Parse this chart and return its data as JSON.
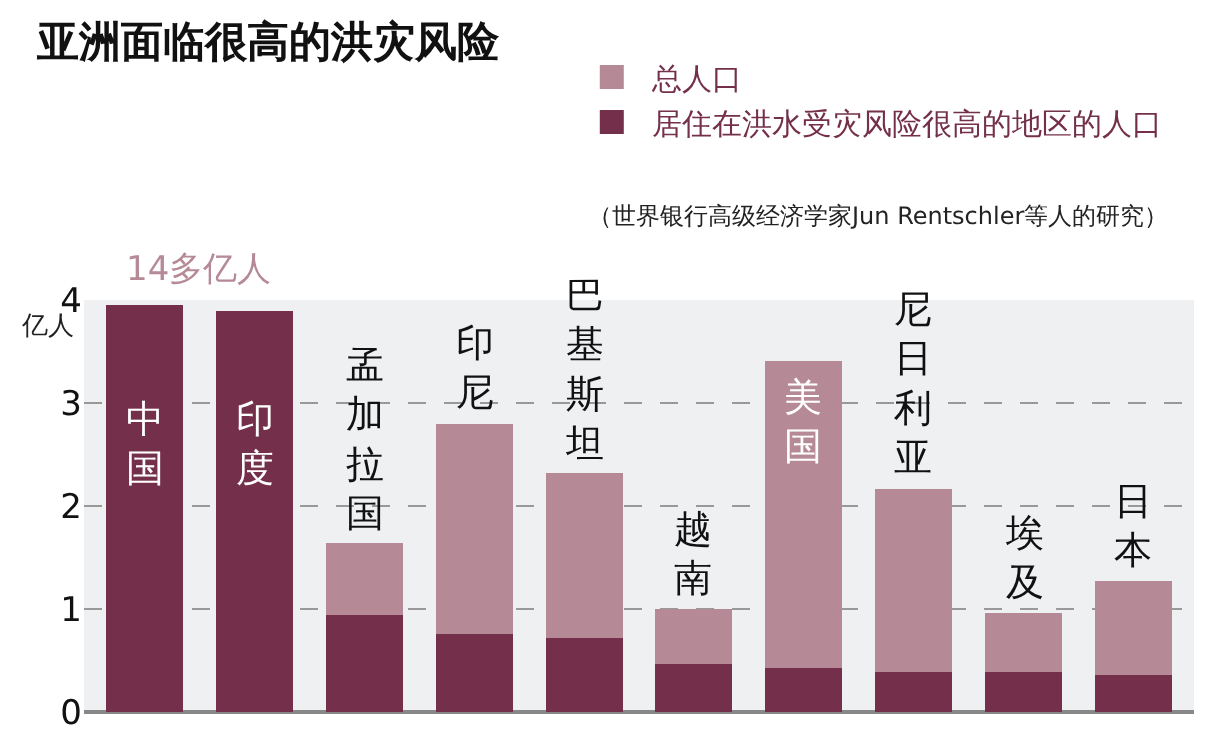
{
  "chart_data": {
    "type": "bar",
    "title": "亚洲面临很高的洪灾风险",
    "subtitle": "（世界银行高级经济学家Jun Rentschler等人的研究）",
    "ylabel": "亿人",
    "categories": [
      "中国",
      "印度",
      "孟加拉国",
      "印尼",
      "巴基斯坦",
      "越南",
      "美国",
      "尼日利亚",
      "埃及",
      "日本"
    ],
    "stacked": true,
    "series": [
      {
        "name": "居住在洪水受灾风险很高的地区的人口",
        "color": "#74304a",
        "values": [
          3.95,
          3.89,
          0.94,
          0.76,
          0.72,
          0.47,
          0.43,
          0.39,
          0.39,
          0.36
        ]
      },
      {
        "name": "总人口",
        "color": "#b58a96",
        "values": [
          null,
          null,
          0.7,
          2.04,
          1.6,
          0.53,
          2.98,
          1.78,
          0.57,
          0.91
        ]
      }
    ],
    "annotations": [
      "14多亿人"
    ],
    "ylim": [
      0,
      4
    ],
    "yticks": [
      0,
      1,
      2,
      3,
      4
    ],
    "grid": "y",
    "legend": "top right"
  }
}
